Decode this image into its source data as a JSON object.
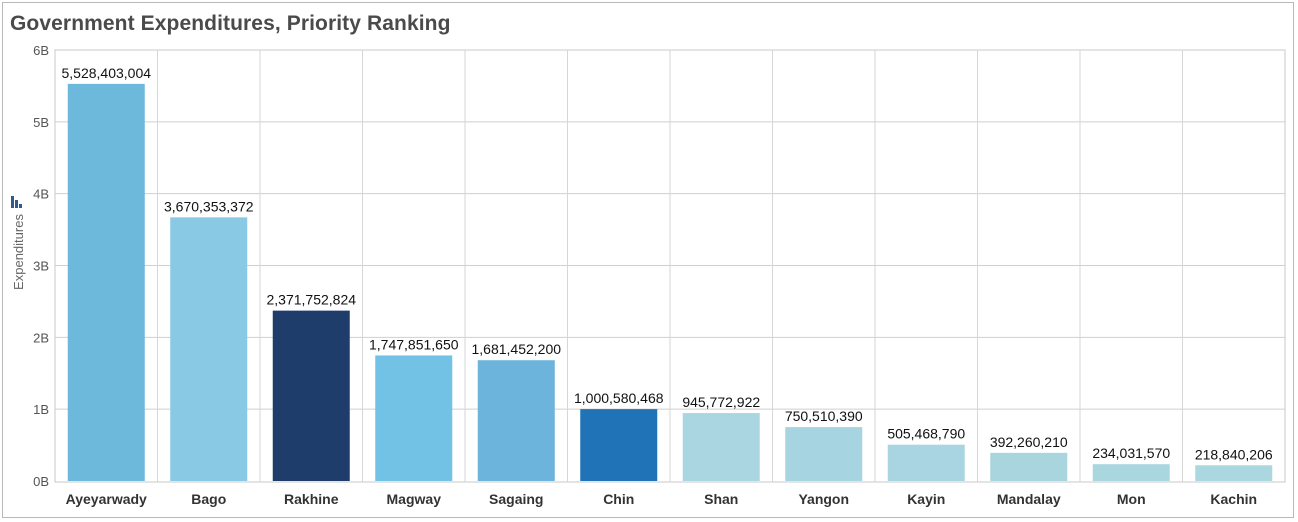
{
  "chart_data": {
    "type": "bar",
    "title": "Government Expenditures, Priority Ranking",
    "ylabel": "Expenditures",
    "xlabel": "",
    "ylim": [
      0,
      6000000000
    ],
    "yticks": [
      {
        "value": 0,
        "label": "0B"
      },
      {
        "value": 1000000000,
        "label": "1B"
      },
      {
        "value": 2000000000,
        "label": "2B"
      },
      {
        "value": 3000000000,
        "label": "3B"
      },
      {
        "value": 4000000000,
        "label": "4B"
      },
      {
        "value": 5000000000,
        "label": "5B"
      },
      {
        "value": 6000000000,
        "label": "6B"
      }
    ],
    "grid": true,
    "categories": [
      "Ayeyarwady",
      "Bago",
      "Rakhine",
      "Magway",
      "Sagaing",
      "Chin",
      "Shan",
      "Yangon",
      "Kayin",
      "Mandalay",
      "Mon",
      "Kachin"
    ],
    "values": [
      5528403004,
      3670353372,
      2371752824,
      1747851650,
      1681452200,
      1000580468,
      945772922,
      750510390,
      505468790,
      392260210,
      234031570,
      218840206
    ],
    "value_labels": [
      "5,528,403,004",
      "3,670,353,372",
      "2,371,752,824",
      "1,747,851,650",
      "1,681,452,200",
      "1,000,580,468",
      "945,772,922",
      "750,510,390",
      "505,468,790",
      "392,260,210",
      "234,031,570",
      "218,840,206"
    ],
    "colors": [
      "#6cb9dc",
      "#8ac9e4",
      "#1f3d6a",
      "#72c2e6",
      "#6cb4db",
      "#1f73b6",
      "#a9d6e0",
      "#a7d4e1",
      "#a8d5e1",
      "#a9d5df",
      "#aad6e0",
      "#abd7e1"
    ]
  }
}
